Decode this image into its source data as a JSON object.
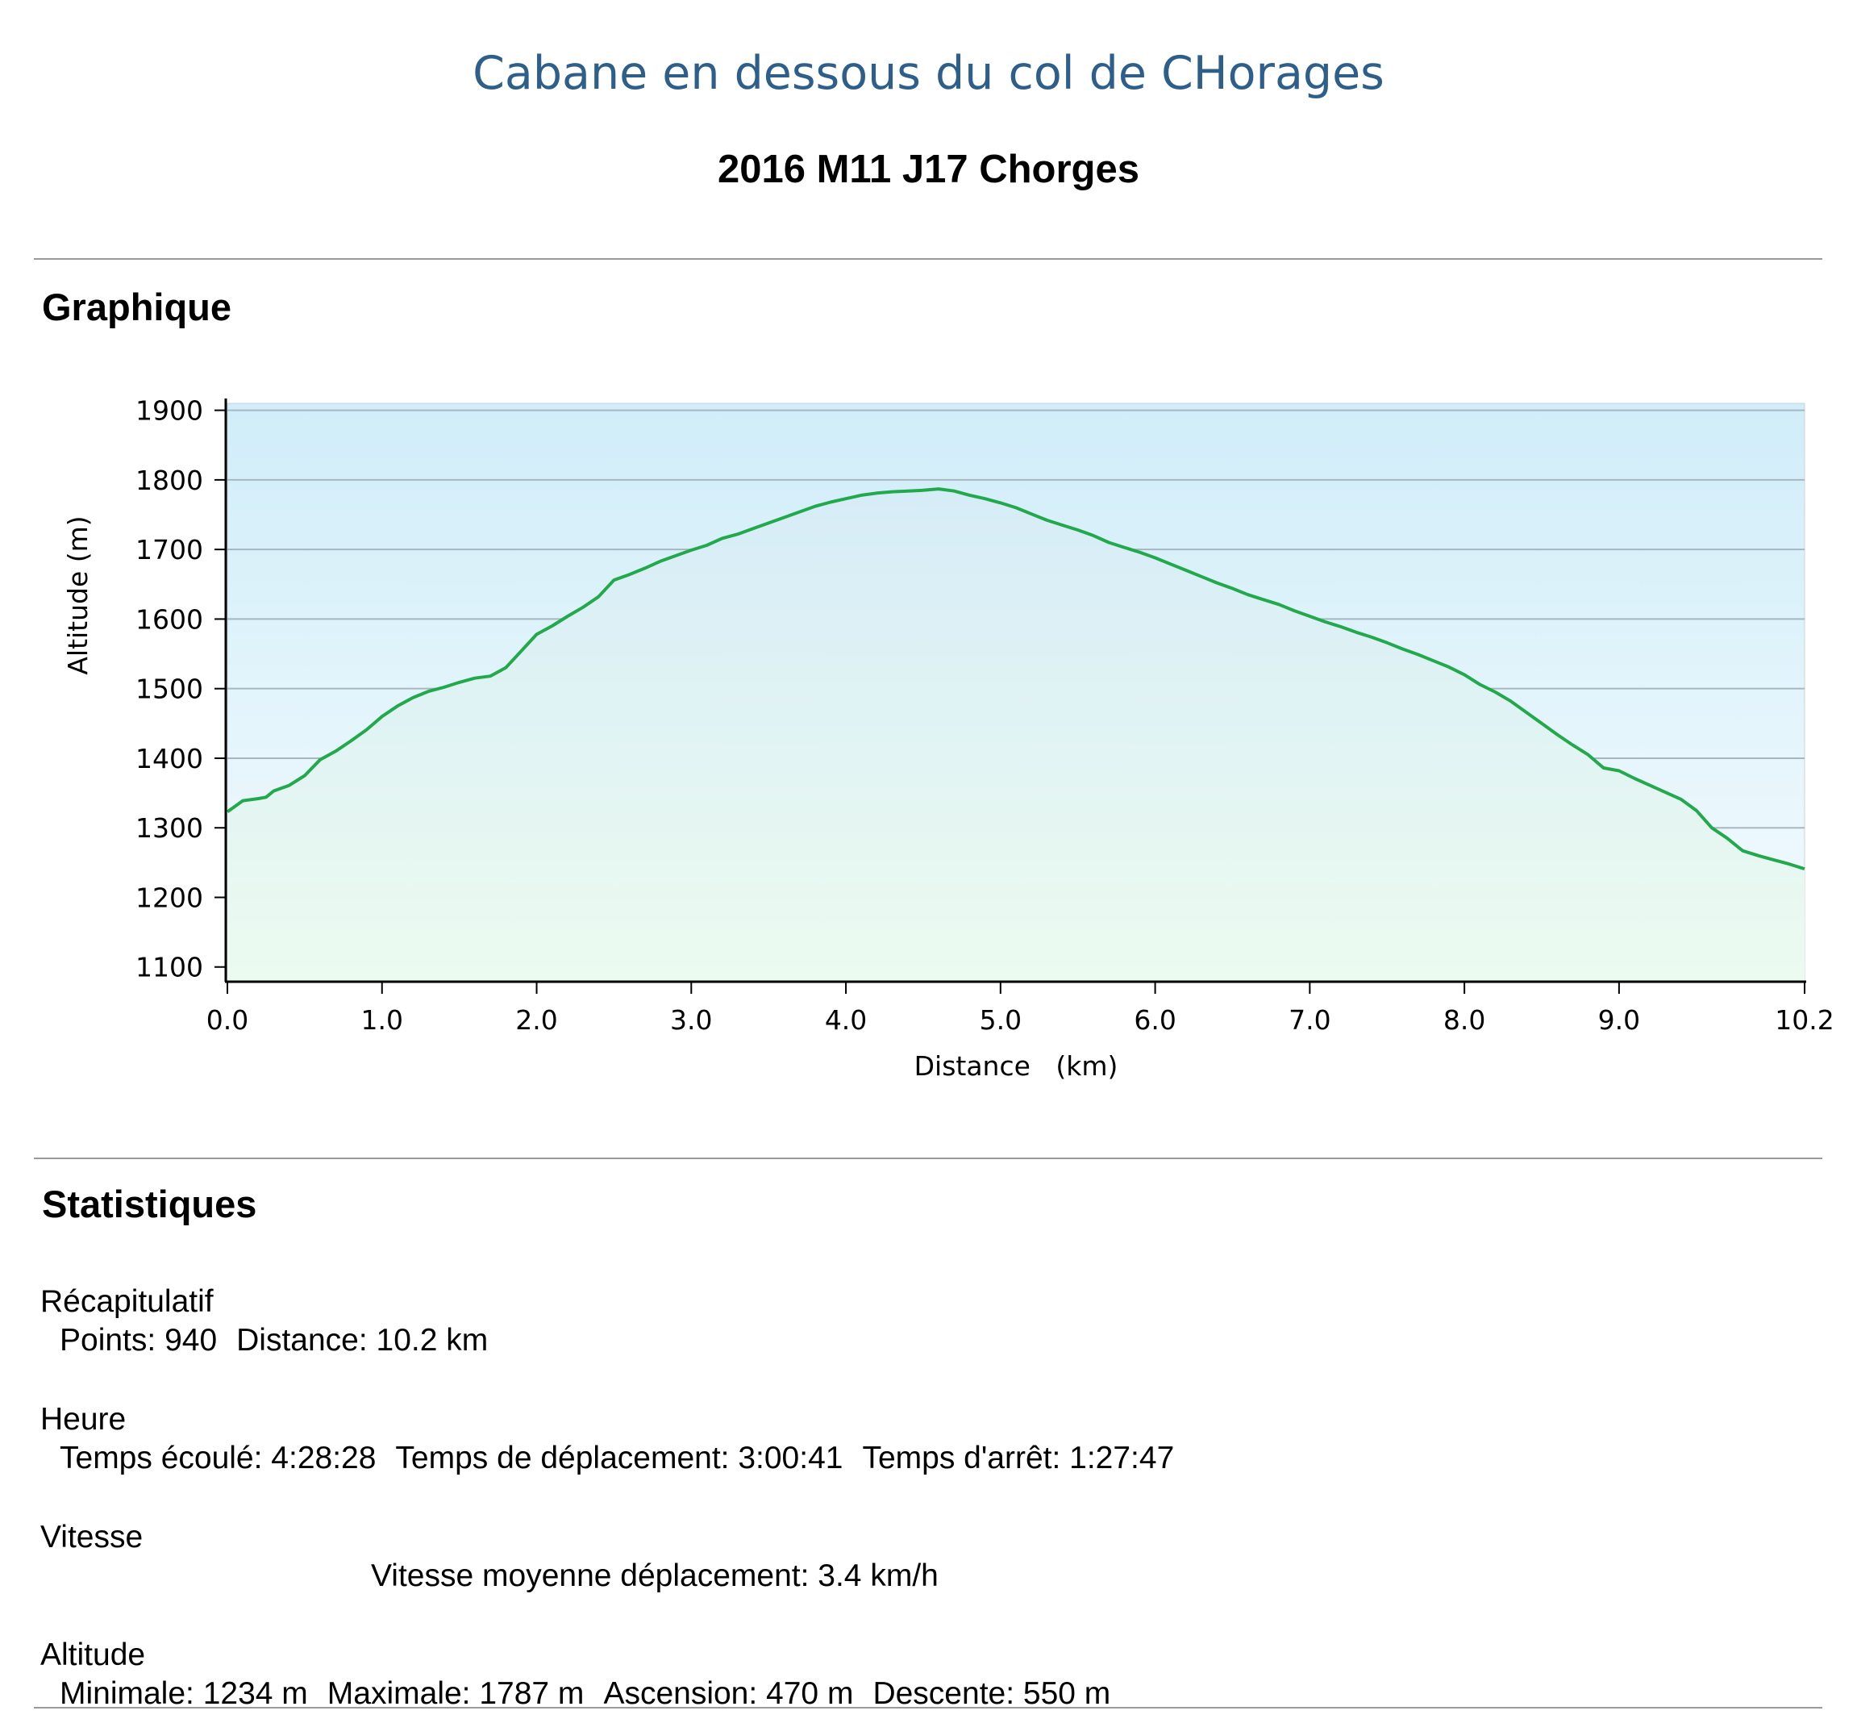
{
  "header": {
    "brand": "Cabane en dessous du col de CHorages",
    "track_title": "2016 M11 J17 Chorges"
  },
  "sections": {
    "graph_title": "Graphique",
    "stats_title": "Statistiques"
  },
  "colors": {
    "line": "#22a94c",
    "fill_top": "#d6ecf7",
    "fill_bottom": "#ecfbf0",
    "sky_top": "#d0edf9",
    "sky_bottom": "#f4fbfe",
    "grid": "#a7b7c0"
  },
  "chart_data": {
    "type": "area",
    "xlabel": "Distance   (km)",
    "ylabel": "Altitude (m)",
    "xlim": [
      0,
      10.2
    ],
    "ylim": [
      1080,
      1910
    ],
    "x_ticks": [
      0.0,
      1.0,
      2.0,
      3.0,
      4.0,
      5.0,
      6.0,
      7.0,
      8.0,
      9.0,
      10.2
    ],
    "x_tick_labels": [
      "0.0",
      "1.0",
      "2.0",
      "3.0",
      "4.0",
      "5.0",
      "6.0",
      "7.0",
      "8.0",
      "9.0",
      "10.2"
    ],
    "y_ticks": [
      1900,
      1800,
      1700,
      1600,
      1500,
      1400,
      1300,
      1200,
      1100
    ],
    "y_tick_labels": [
      "1900",
      "1800",
      "1700",
      "1600",
      "1500",
      "1400",
      "1300",
      "1200",
      "1100"
    ],
    "grid": true,
    "series": [
      {
        "x": [
          0.0,
          0.1,
          0.2,
          0.25,
          0.3,
          0.4,
          0.5,
          0.6,
          0.7,
          0.8,
          0.9,
          1.0,
          1.1,
          1.2,
          1.3,
          1.4,
          1.5,
          1.6,
          1.7,
          1.8,
          1.9,
          2.0,
          2.1,
          2.2,
          2.3,
          2.4,
          2.5,
          2.6,
          2.7,
          2.8,
          2.9,
          3.0,
          3.1,
          3.2,
          3.3,
          3.4,
          3.5,
          3.6,
          3.7,
          3.8,
          3.9,
          4.0,
          4.1,
          4.2,
          4.3,
          4.4,
          4.5,
          4.6,
          4.7,
          4.8,
          4.9,
          5.0,
          5.1,
          5.2,
          5.3,
          5.4,
          5.5,
          5.6,
          5.7,
          5.8,
          5.9,
          6.0,
          6.1,
          6.2,
          6.3,
          6.4,
          6.5,
          6.6,
          6.7,
          6.8,
          6.9,
          7.0,
          7.1,
          7.2,
          7.3,
          7.4,
          7.5,
          7.6,
          7.7,
          7.8,
          7.9,
          8.0,
          8.1,
          8.2,
          8.3,
          8.4,
          8.5,
          8.6,
          8.7,
          8.8,
          8.9,
          9.0,
          9.1,
          9.2,
          9.3,
          9.4,
          9.5,
          9.6,
          9.7,
          9.8,
          9.9,
          10.0,
          10.1,
          10.2
        ],
        "values": [
          1323,
          1339,
          1342,
          1344,
          1353,
          1361,
          1375,
          1398,
          1410,
          1425,
          1441,
          1460,
          1475,
          1487,
          1496,
          1502,
          1509,
          1515,
          1518,
          1530,
          1554,
          1578,
          1590,
          1604,
          1617,
          1632,
          1656,
          1664,
          1673,
          1683,
          1691,
          1699,
          1706,
          1716,
          1722,
          1730,
          1738,
          1746,
          1754,
          1762,
          1768,
          1773,
          1778,
          1781,
          1783,
          1784,
          1785,
          1787,
          1784,
          1778,
          1773,
          1767,
          1760,
          1751,
          1742,
          1735,
          1728,
          1720,
          1710,
          1703,
          1696,
          1688,
          1679,
          1670,
          1661,
          1652,
          1644,
          1635,
          1628,
          1621,
          1612,
          1604,
          1596,
          1589,
          1581,
          1574,
          1566,
          1557,
          1549,
          1540,
          1531,
          1520,
          1506,
          1495,
          1482,
          1466,
          1450,
          1434,
          1419,
          1405,
          1386,
          1382,
          1371,
          1361,
          1351,
          1341,
          1325,
          1300,
          1285,
          1267,
          1260,
          1254,
          1248,
          1241
        ]
      }
    ]
  },
  "stats": {
    "groups": [
      {
        "title": "Récapitulatif",
        "items": [
          "Points: 940",
          "Distance: 10.2 km"
        ]
      },
      {
        "title": "Heure",
        "items": [
          "Temps écoulé: 4:28:28",
          "Temps de déplacement: 3:00:41",
          "Temps d'arrêt: 1:27:47"
        ]
      },
      {
        "title": "Vitesse",
        "items": [
          "Vitesse moyenne déplacement: 3.4 km/h"
        ]
      },
      {
        "title": "Altitude",
        "items": [
          "Minimale: 1234 m",
          "Maximale: 1787 m",
          "Ascension: 470 m",
          "Descente: 550 m"
        ]
      }
    ]
  }
}
